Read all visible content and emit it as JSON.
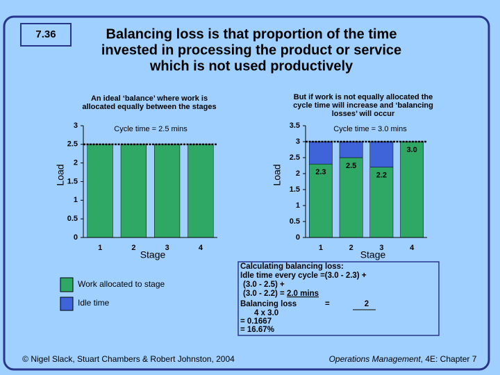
{
  "slide_number": "7.36",
  "title_lines": [
    "Balancing loss is that proportion of the time",
    "invested in processing the product or service",
    "which is not used productively"
  ],
  "legend": {
    "items": [
      "Work allocated to stage",
      "Idle time"
    ]
  },
  "calculation": {
    "lines": [
      "Calculating balancing loss:",
      "Idle time every cycle =(3.0 - 2.3) +",
      "(3.0 - 2.5) +",
      "(3.0 - 2.2) = ",
      "2.0 mins",
      "Balancing loss",
      "=",
      "2",
      "4 x 3.0",
      "= 0.1667",
      "= 16.67%"
    ]
  },
  "footer_left": "© Nigel Slack, Stuart Chambers & Robert Johnston, 2004",
  "footer_right_italic": "Operations Management",
  "footer_right": ", 4E: Chapter 7",
  "chart_data": [
    {
      "type": "bar",
      "subtitle_lines": [
        "An ideal ‘balance’ where work is",
        "allocated equally between the stages"
      ],
      "annotation": "Cycle time = 2.5 mins",
      "reference_line": 2.5,
      "x_label": "Stage",
      "y_label": "Load",
      "categories": [
        "1",
        "2",
        "3",
        "4"
      ],
      "values": [
        2.5,
        2.5,
        2.5,
        2.5
      ],
      "color": "#2fa866",
      "ylim": [
        0,
        3
      ],
      "yticks": [
        0,
        0.5,
        1,
        1.5,
        2,
        2.5,
        3
      ]
    },
    {
      "type": "stacked_bar",
      "subtitle_lines": [
        "But if work is not equally allocated the",
        "cycle time will increase and ‘balancing",
        "losses’ will occur"
      ],
      "annotation": "Cycle time = 3.0 mins",
      "reference_line": 3,
      "x_label": "Stage",
      "y_label": "Load",
      "categories": [
        "1",
        "2",
        "3",
        "4"
      ],
      "series": [
        {
          "name": "Work allocated to stage",
          "color": "#2fa866",
          "values": [
            2.3,
            2.5,
            2.2,
            3.0
          ],
          "value_labels": [
            "2.3",
            "2.5",
            "2.2",
            "3.0"
          ]
        },
        {
          "name": "Idle time",
          "color": "#3f63d8",
          "values": [
            0.7,
            0.5,
            0.8,
            0
          ]
        }
      ],
      "ylim": [
        0,
        3.5
      ],
      "yticks": [
        0,
        0.5,
        1,
        1.5,
        2,
        2.5,
        3,
        3.5
      ]
    }
  ]
}
